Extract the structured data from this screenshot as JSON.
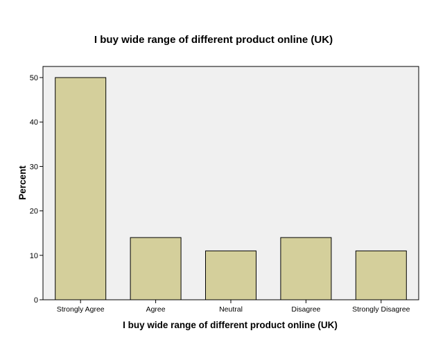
{
  "chart_data": {
    "type": "bar",
    "title": "I buy wide range of different product online (UK)",
    "xlabel": "I buy wide range of different product online (UK)",
    "ylabel": "Percent",
    "categories": [
      "Strongly Agree",
      "Agree",
      "Neutral",
      "Disagree",
      "Strongly Disagree"
    ],
    "values": [
      50,
      14,
      11,
      14,
      11
    ],
    "ylim": [
      0,
      52.5
    ],
    "yticks": [
      0,
      10,
      20,
      30,
      40,
      50
    ],
    "grid": false,
    "legend": "none",
    "colors": {
      "bar_fill": "#d4cf9b",
      "bar_stroke": "#000000",
      "plot_background": "#f0f0f0",
      "page_background": "#ffffff"
    }
  }
}
